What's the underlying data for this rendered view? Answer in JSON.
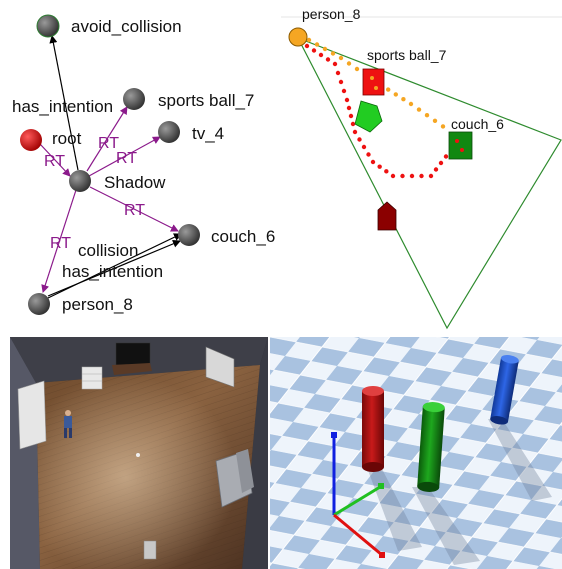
{
  "graph": {
    "nodes": {
      "avoid_collision": "avoid_collision",
      "root": "root",
      "sports_ball": "sports ball_7",
      "tv": "tv_4",
      "shadow": "Shadow",
      "couch": "couch_6",
      "person": "person_8"
    },
    "edge_labels": {
      "has_intention_top": "has_intention",
      "rt_root": "RT",
      "rt_sports": "RT",
      "rt_tv": "RT",
      "rt_couch": "RT",
      "rt_person": "RT",
      "collision": "collision",
      "has_intention_bottom": "has_intention"
    },
    "colors": {
      "node": "#4a4a4a",
      "root": "#cc1111",
      "rt_edge": "#8b1a8b",
      "black_edge": "#000000"
    }
  },
  "plan": {
    "labels": {
      "person": "person_8",
      "sports_ball": "sports ball_7",
      "couch": "couch_6"
    },
    "colors": {
      "person": "#f5a623",
      "sports_ball": "#ee1111",
      "couch": "#118811",
      "obstacle": "#22cc22",
      "robot": "#8b0000",
      "path_red": "#ee1111",
      "path_orange": "#f5a623",
      "triangle": "#2e8b2e"
    }
  },
  "room": {
    "description_icons": [
      "door-icon",
      "shelf-icon",
      "tv-icon",
      "picture-icon",
      "sofa-icon",
      "chair-icon",
      "person-icon",
      "ball-icon"
    ]
  },
  "sim": {
    "colors": {
      "red_cylinder": "#b01010",
      "green_cylinder": "#138a13",
      "blue_cylinder": "#1a4fd6",
      "axis_x": "#e01010",
      "axis_y": "#20c020",
      "axis_z": "#1020e0"
    }
  }
}
